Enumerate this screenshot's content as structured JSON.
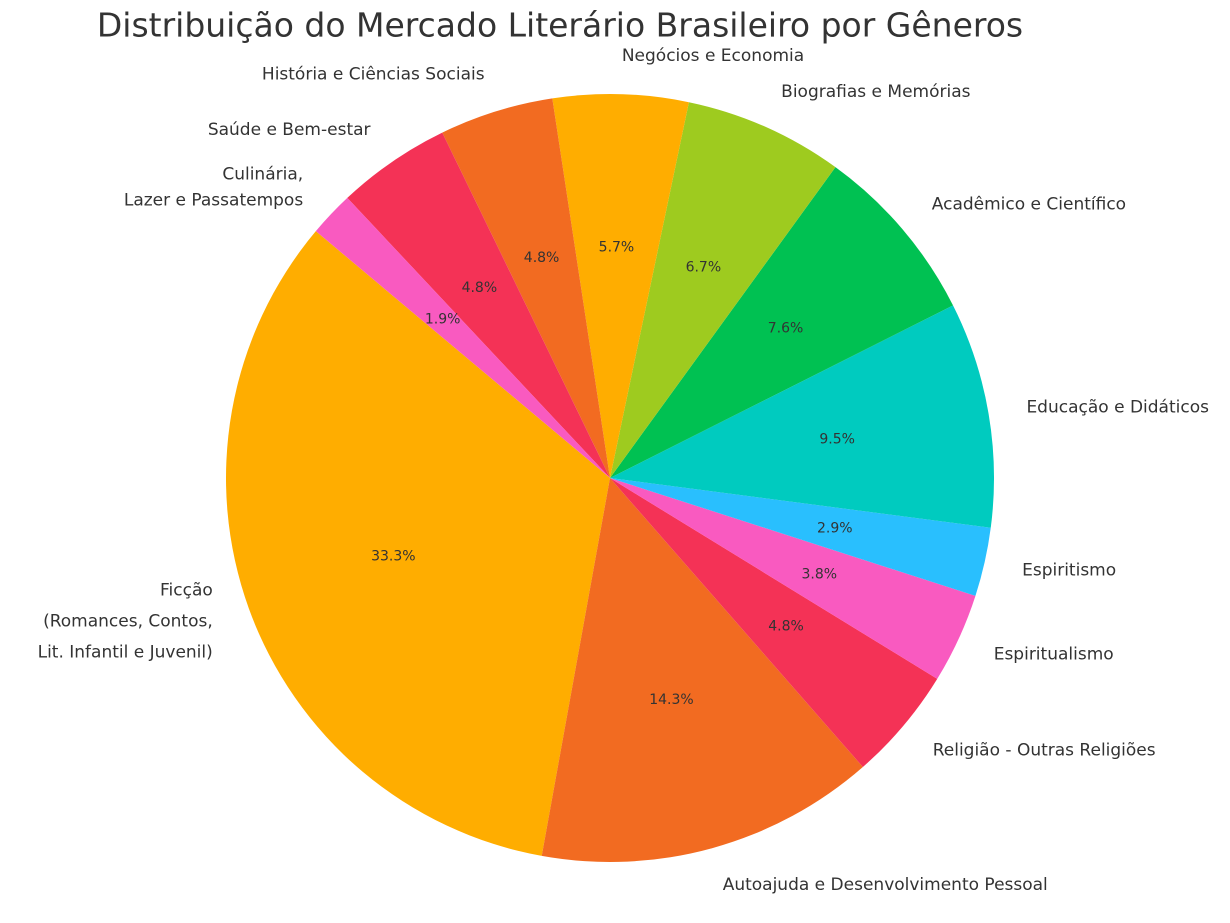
{
  "chart_data": {
    "type": "pie",
    "title": "Distribuição do Mercado Literário Brasileiro por Gêneros",
    "categories": [
      "Ficção\n(Romances, Contos,\nLit. Infantil e Juvenil)",
      "Autoajuda e Desenvolvimento Pessoal",
      "Religião - Outras Religiões",
      "Espiritualismo",
      "Espiritismo",
      "Educação e Didáticos",
      "Acadêmico e Científico",
      "Biografias e Memórias",
      "Negócios e Economia",
      "História e Ciências Sociais",
      "Saúde e Bem-estar",
      "Culinária,\nLazer e Passatempos"
    ],
    "values": [
      33.3,
      14.3,
      4.8,
      3.8,
      2.9,
      9.5,
      7.6,
      6.7,
      5.7,
      4.8,
      4.8,
      1.9
    ],
    "value_labels": [
      "33.3%",
      "14.3%",
      "4.8%",
      "3.8%",
      "2.9%",
      "9.5%",
      "7.6%",
      "6.7%",
      "5.7%",
      "4.8%",
      "4.8%",
      "1.9%"
    ],
    "colors": [
      "#ffad00",
      "#f26b21",
      "#f43256",
      "#f95ac0",
      "#29bffe",
      "#00cbbf",
      "#00c152",
      "#9ecb1f",
      "#ffad00",
      "#f26b21",
      "#f43256",
      "#f95ac0"
    ]
  }
}
